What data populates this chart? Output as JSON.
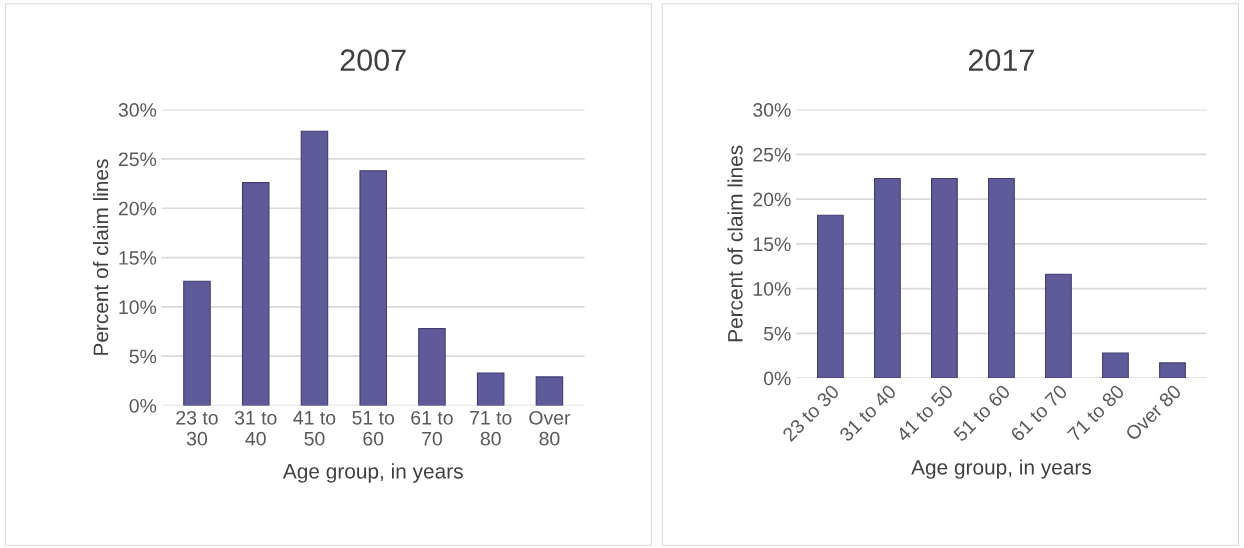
{
  "chart_data": [
    {
      "type": "bar",
      "title": "2007",
      "xlabel": "Age group, in years",
      "ylabel": "Percent of claim lines",
      "categories": [
        "23 to\n30",
        "31 to\n40",
        "41 to\n50",
        "51 to\n60",
        "61 to\n70",
        "71 to\n80",
        "Over\n80"
      ],
      "values": [
        12.6,
        22.6,
        27.8,
        23.8,
        7.8,
        3.3,
        2.9
      ],
      "color": "#5f5b9b",
      "ylim": [
        0,
        30
      ],
      "yticks": [
        {
          "value": 0,
          "label": "0%"
        },
        {
          "value": 5,
          "label": "5%"
        },
        {
          "value": 10,
          "label": "10%"
        },
        {
          "value": 15,
          "label": "15%"
        },
        {
          "value": 20,
          "label": "20%"
        },
        {
          "value": 25,
          "label": "25%"
        },
        {
          "value": 30,
          "label": "30%"
        }
      ],
      "grid": "y"
    },
    {
      "type": "bar",
      "title": "2017",
      "xlabel": "Age group, in years",
      "ylabel": "Percent of claim lines",
      "categories": [
        "23 to 30",
        "31 to 40",
        "41 to 50",
        "51 to 60",
        "61 to 70",
        "71 to 80",
        "Over 80"
      ],
      "values": [
        18.2,
        22.3,
        22.3,
        22.3,
        11.6,
        2.8,
        1.7
      ],
      "color": "#5f5b9b",
      "ylim": [
        0,
        30
      ],
      "yticks": [
        {
          "value": 0,
          "label": "0%"
        },
        {
          "value": 5,
          "label": "5%"
        },
        {
          "value": 10,
          "label": "10%"
        },
        {
          "value": 15,
          "label": "15%"
        },
        {
          "value": 20,
          "label": "20%"
        },
        {
          "value": 25,
          "label": "25%"
        },
        {
          "value": 30,
          "label": "30%"
        }
      ],
      "grid": "y"
    }
  ]
}
